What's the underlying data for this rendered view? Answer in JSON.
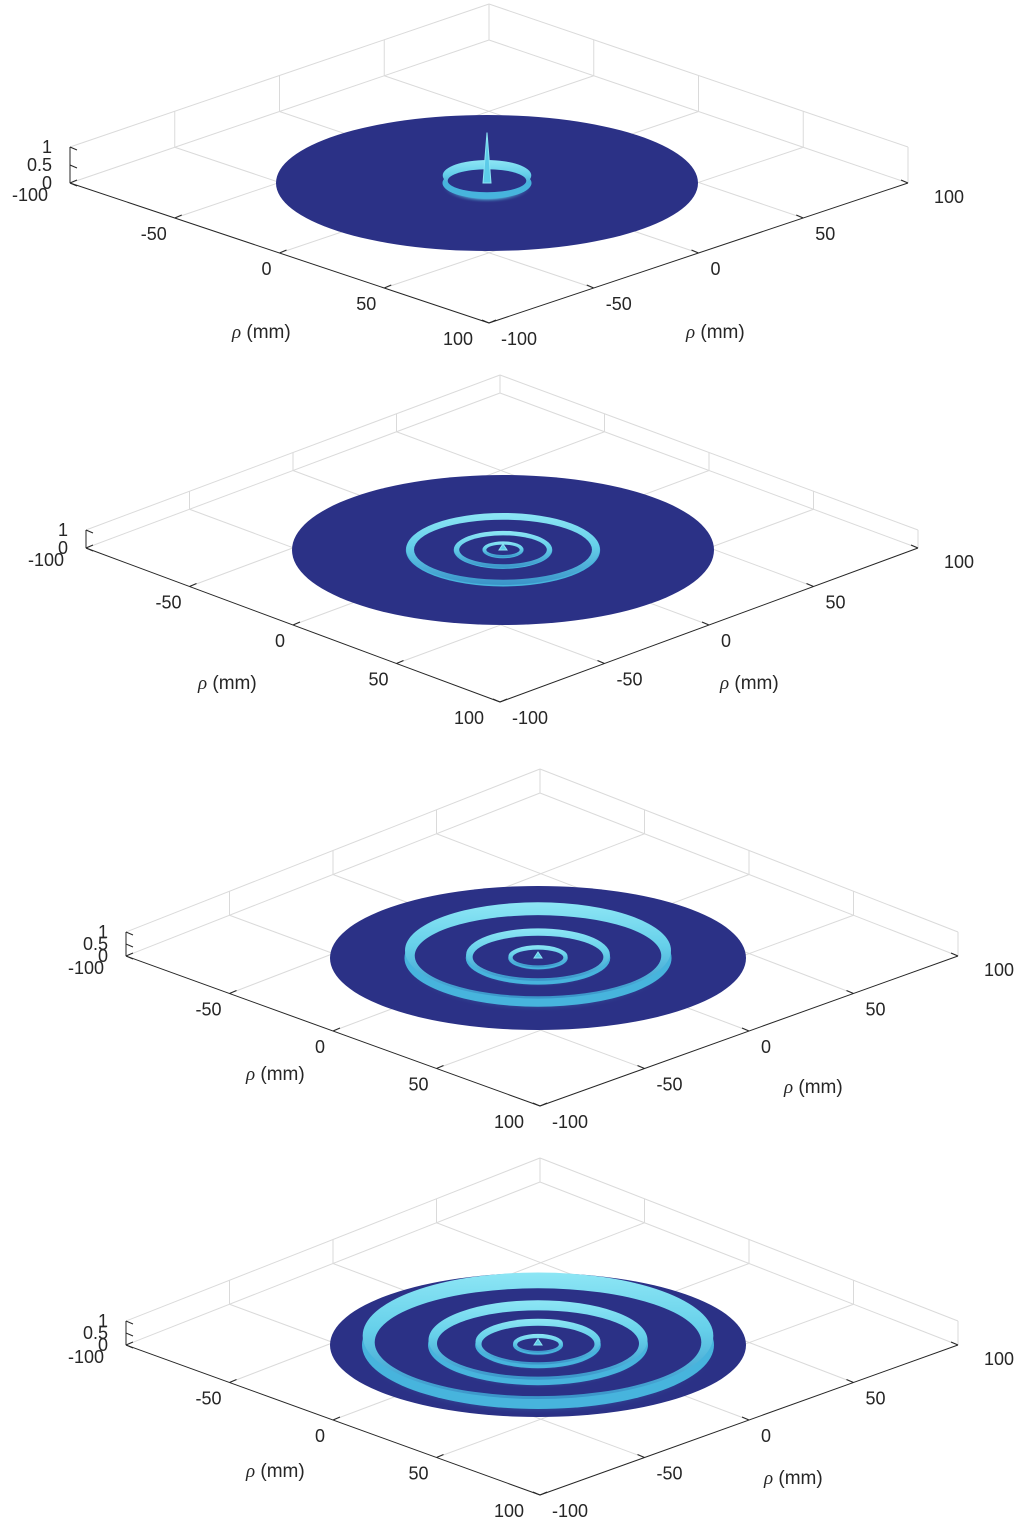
{
  "chart_data": [
    {
      "type": "surface3d",
      "panel": 1,
      "xlabel_symbol": "ρ",
      "xlabel_unit": "(mm)",
      "ylabel_symbol": "ρ",
      "ylabel_unit": "(mm)",
      "xlim": [
        -100,
        100
      ],
      "ylim": [
        -100,
        100
      ],
      "zlim": [
        0,
        1
      ],
      "x_ticks": [
        "-100",
        "-50",
        "0",
        "50",
        "100"
      ],
      "y_ticks": [
        "-100",
        "-50",
        "0",
        "50",
        "100"
      ],
      "z_ticks": [
        "0",
        "0.5",
        "1"
      ],
      "grid": true,
      "rings": [
        {
          "radius": 0,
          "height": 1
        },
        {
          "radius": 9,
          "height": 0.3
        }
      ],
      "colors": {
        "base": "#2b3186",
        "peak": "#5ccbe8"
      }
    },
    {
      "type": "surface3d",
      "panel": 2,
      "xlabel_symbol": "ρ",
      "xlabel_unit": "(mm)",
      "ylabel_symbol": "ρ",
      "ylabel_unit": "(mm)",
      "xlim": [
        -100,
        100
      ],
      "ylim": [
        -100,
        100
      ],
      "zlim": [
        0,
        1
      ],
      "x_ticks": [
        "-100",
        "-50",
        "0",
        "50",
        "100"
      ],
      "y_ticks": [
        "-100",
        "-50",
        "0",
        "50",
        "100"
      ],
      "z_ticks": [
        "0",
        "1"
      ],
      "grid": true,
      "rings": [
        {
          "radius": 0,
          "height": 0.05
        },
        {
          "radius": 4,
          "height": 0.05
        },
        {
          "radius": 10,
          "height": 0.05
        },
        {
          "radius": 20,
          "height": 0.08
        }
      ],
      "colors": {
        "base": "#2b3186",
        "peak": "#5ccbe8"
      }
    },
    {
      "type": "surface3d",
      "panel": 3,
      "xlabel_symbol": "ρ",
      "xlabel_unit": "(mm)",
      "ylabel_symbol": "ρ",
      "ylabel_unit": "(mm)",
      "xlim": [
        -100,
        100
      ],
      "ylim": [
        -100,
        100
      ],
      "zlim": [
        0,
        1
      ],
      "x_ticks": [
        "-100",
        "-50",
        "0",
        "50",
        "100"
      ],
      "y_ticks": [
        "-100",
        "-50",
        "0",
        "50",
        "100"
      ],
      "z_ticks": [
        "0",
        "0.5",
        "1"
      ],
      "grid": true,
      "rings": [
        {
          "radius": 0,
          "height": 0.1
        },
        {
          "radius": 6,
          "height": 0.1
        },
        {
          "radius": 15,
          "height": 0.2
        },
        {
          "radius": 28,
          "height": 0.45
        }
      ],
      "colors": {
        "base": "#2b3186",
        "peak": "#5ccbe8"
      }
    },
    {
      "type": "surface3d",
      "panel": 4,
      "xlabel_symbol": "ρ",
      "xlabel_unit": "(mm)",
      "ylabel_symbol": "ρ",
      "ylabel_unit": "(mm)",
      "xlim": [
        -100,
        100
      ],
      "ylim": [
        -100,
        100
      ],
      "zlim": [
        0,
        1
      ],
      "x_ticks": [
        "-100",
        "-50",
        "0",
        "50",
        "100"
      ],
      "y_ticks": [
        "-100",
        "-50",
        "0",
        "50",
        "100"
      ],
      "z_ticks": [
        "0",
        "0.5",
        "1"
      ],
      "grid": true,
      "rings": [
        {
          "radius": 0,
          "height": 0.1
        },
        {
          "radius": 5,
          "height": 0.1
        },
        {
          "radius": 13,
          "height": 0.2
        },
        {
          "radius": 23,
          "height": 0.3
        },
        {
          "radius": 37,
          "height": 0.55
        }
      ],
      "colors": {
        "base": "#2b3186",
        "peak": "#5ccbe8"
      }
    }
  ]
}
